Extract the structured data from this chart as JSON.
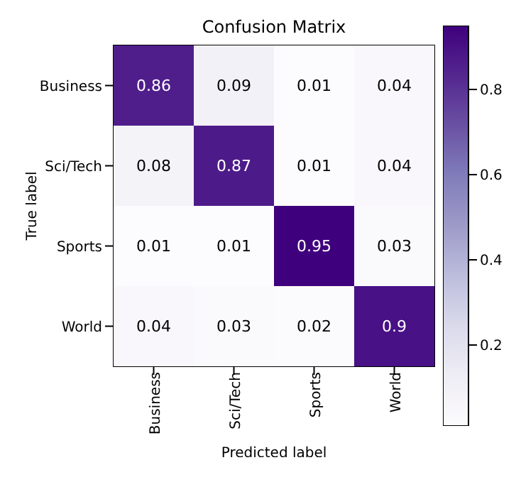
{
  "chart_data": {
    "type": "heatmap",
    "title": "Confusion Matrix",
    "xlabel": "Predicted label",
    "ylabel": "True label",
    "categories": [
      "Business",
      "Sci/Tech",
      "Sports",
      "World"
    ],
    "y_categories": [
      "Business",
      "Sci/Tech",
      "Sports",
      "World"
    ],
    "cells": [
      [
        0.86,
        0.09,
        0.01,
        0.04
      ],
      [
        0.08,
        0.87,
        0.01,
        0.04
      ],
      [
        0.01,
        0.01,
        0.95,
        0.03
      ],
      [
        0.04,
        0.03,
        0.02,
        0.9
      ]
    ],
    "clim": [
      0.01,
      0.95
    ],
    "cticks": [
      0.2,
      0.4,
      0.6,
      0.8
    ],
    "data_labels": true
  }
}
